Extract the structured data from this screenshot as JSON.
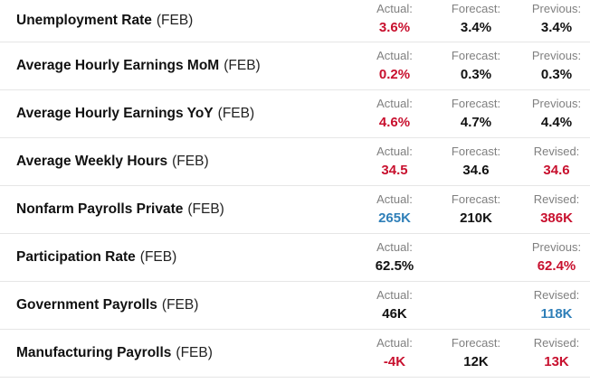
{
  "colors": {
    "negative": "#c8102e",
    "positive": "#2f7fb8",
    "neutral": "#111111"
  },
  "rows": [
    {
      "name": "Unemployment Rate",
      "period": "(FEB)",
      "c1": {
        "label": "Actual:",
        "value": "3.6%",
        "tone": "red"
      },
      "c2": {
        "label": "Forecast:",
        "value": "3.4%",
        "tone": "black"
      },
      "c3": {
        "label": "Previous:",
        "value": "3.4%",
        "tone": "black"
      }
    },
    {
      "name": "Average Hourly Earnings MoM",
      "period": "(FEB)",
      "c1": {
        "label": "Actual:",
        "value": "0.2%",
        "tone": "red"
      },
      "c2": {
        "label": "Forecast:",
        "value": "0.3%",
        "tone": "black"
      },
      "c3": {
        "label": "Previous:",
        "value": "0.3%",
        "tone": "black"
      }
    },
    {
      "name": "Average Hourly Earnings YoY",
      "period": "(FEB)",
      "c1": {
        "label": "Actual:",
        "value": "4.6%",
        "tone": "red"
      },
      "c2": {
        "label": "Forecast:",
        "value": "4.7%",
        "tone": "black"
      },
      "c3": {
        "label": "Previous:",
        "value": "4.4%",
        "tone": "black"
      }
    },
    {
      "name": "Average Weekly Hours",
      "period": "(FEB)",
      "c1": {
        "label": "Actual:",
        "value": "34.5",
        "tone": "red"
      },
      "c2": {
        "label": "Forecast:",
        "value": "34.6",
        "tone": "black"
      },
      "c3": {
        "label": "Revised:",
        "value": "34.6",
        "tone": "red"
      }
    },
    {
      "name": "Nonfarm Payrolls Private",
      "period": "(FEB)",
      "c1": {
        "label": "Actual:",
        "value": "265K",
        "tone": "blue"
      },
      "c2": {
        "label": "Forecast:",
        "value": "210K",
        "tone": "black"
      },
      "c3": {
        "label": "Revised:",
        "value": "386K",
        "tone": "red"
      }
    },
    {
      "name": "Participation Rate",
      "period": "(FEB)",
      "c1": {
        "label": "Actual:",
        "value": "62.5%",
        "tone": "black"
      },
      "c2": {
        "label": "",
        "value": "",
        "tone": "black"
      },
      "c3": {
        "label": "Previous:",
        "value": "62.4%",
        "tone": "red"
      }
    },
    {
      "name": "Government Payrolls",
      "period": "(FEB)",
      "c1": {
        "label": "Actual:",
        "value": "46K",
        "tone": "black"
      },
      "c2": {
        "label": "",
        "value": "",
        "tone": "black"
      },
      "c3": {
        "label": "Revised:",
        "value": "118K",
        "tone": "blue"
      }
    },
    {
      "name": "Manufacturing Payrolls",
      "period": "(FEB)",
      "c1": {
        "label": "Actual:",
        "value": "-4K",
        "tone": "red"
      },
      "c2": {
        "label": "Forecast:",
        "value": "12K",
        "tone": "black"
      },
      "c3": {
        "label": "Revised:",
        "value": "13K",
        "tone": "red"
      }
    }
  ]
}
